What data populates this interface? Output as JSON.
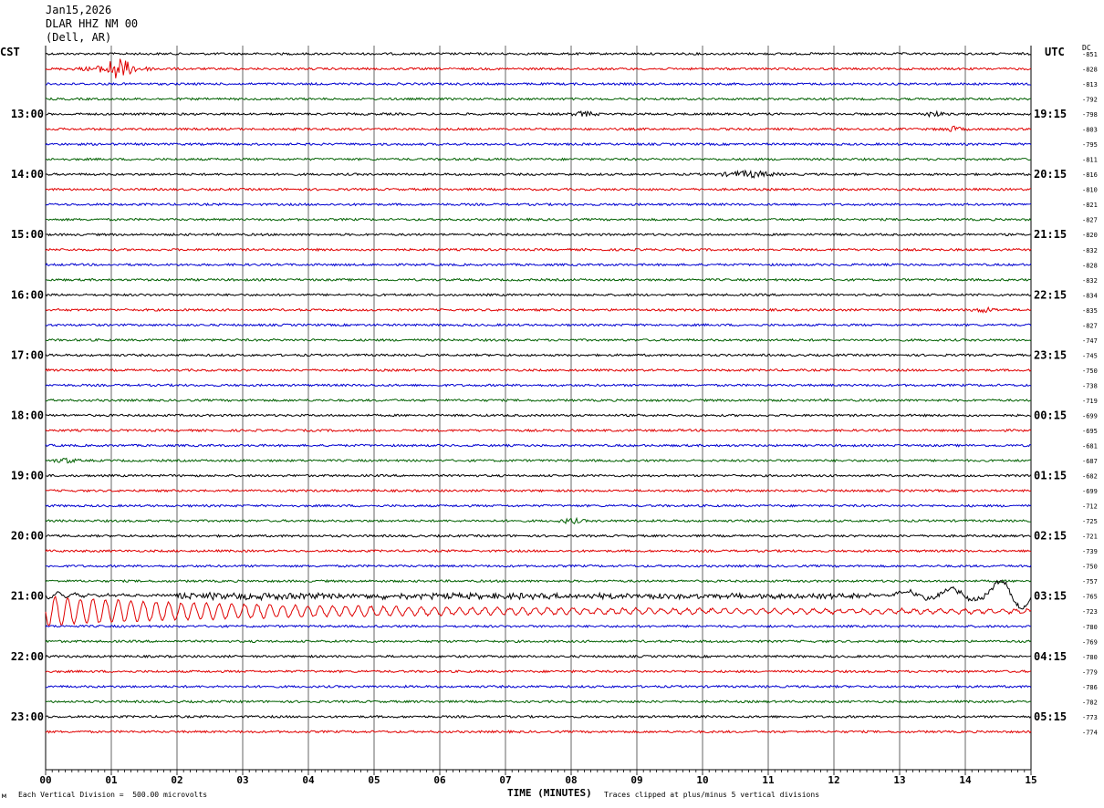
{
  "header": {
    "date": "Jan15,2026",
    "station": "DLAR HHZ NM 00",
    "location": "(Dell, AR)"
  },
  "left_axis_title": "CST",
  "right_axis_title": "UTC",
  "dc_title": "DC",
  "footer": {
    "vertical_division": "Each Vertical Division =  500.00 microvolts",
    "xlabel": "TIME (MINUTES)",
    "clip_note": "Traces clipped at plus/minus 5 vertical divisions"
  },
  "colors": {
    "cycle": [
      "#000000",
      "#e00000",
      "#0000d0",
      "#006000"
    ],
    "grid": "#000000",
    "background": "#ffffff"
  },
  "chart_data": {
    "type": "line",
    "title": "Jan15,2026 DLAR HHZ NM 00 (Dell, AR)",
    "xlabel": "TIME (MINUTES)",
    "xlim": [
      0,
      15
    ],
    "x_ticks": [
      "00",
      "01",
      "02",
      "03",
      "04",
      "05",
      "06",
      "07",
      "08",
      "09",
      "10",
      "11",
      "12",
      "13",
      "14",
      "15"
    ],
    "rows_per_hour": 4,
    "left_labels": [
      "13:00",
      "14:00",
      "15:00",
      "16:00",
      "17:00",
      "18:00",
      "19:00",
      "20:00",
      "21:00",
      "22:00",
      "23:00"
    ],
    "right_labels": [
      "19:15",
      "20:15",
      "21:15",
      "22:15",
      "23:15",
      "00:15",
      "01:15",
      "02:15",
      "03:15",
      "04:15",
      "05:15"
    ],
    "dc_offsets": [
      -851,
      -828,
      -813,
      -792,
      -798,
      -803,
      -795,
      -811,
      -816,
      -810,
      -821,
      -827,
      -820,
      -832,
      -828,
      -832,
      -834,
      -835,
      -827,
      -747,
      -745,
      -750,
      -738,
      -719,
      -699,
      -695,
      -681,
      -687,
      -682,
      -699,
      -712,
      -725,
      -721,
      -739,
      -750,
      -757,
      -765,
      -723,
      -780,
      -769,
      -780,
      -779,
      -786,
      -782,
      -773,
      -774
    ],
    "events": [
      {
        "row": 1,
        "minute": 1.1,
        "amplitude": "large"
      },
      {
        "row": 4,
        "minute": 8.2,
        "amplitude": "small"
      },
      {
        "row": 4,
        "minute": 13.5,
        "amplitude": "small"
      },
      {
        "row": 5,
        "minute": 13.8,
        "amplitude": "small"
      },
      {
        "row": 8,
        "minute": 10.7,
        "amplitude": "medium"
      },
      {
        "row": 17,
        "minute": 14.3,
        "amplitude": "small"
      },
      {
        "row": 27,
        "minute": 0.3,
        "amplitude": "small"
      },
      {
        "row": 31,
        "minute": 8.0,
        "amplitude": "small"
      },
      {
        "row": 36,
        "minute": 2.0,
        "amplitude": "teleseism-onset"
      },
      {
        "row": 37,
        "minute": 0.0,
        "amplitude": "teleseism-surface-waves"
      }
    ]
  }
}
